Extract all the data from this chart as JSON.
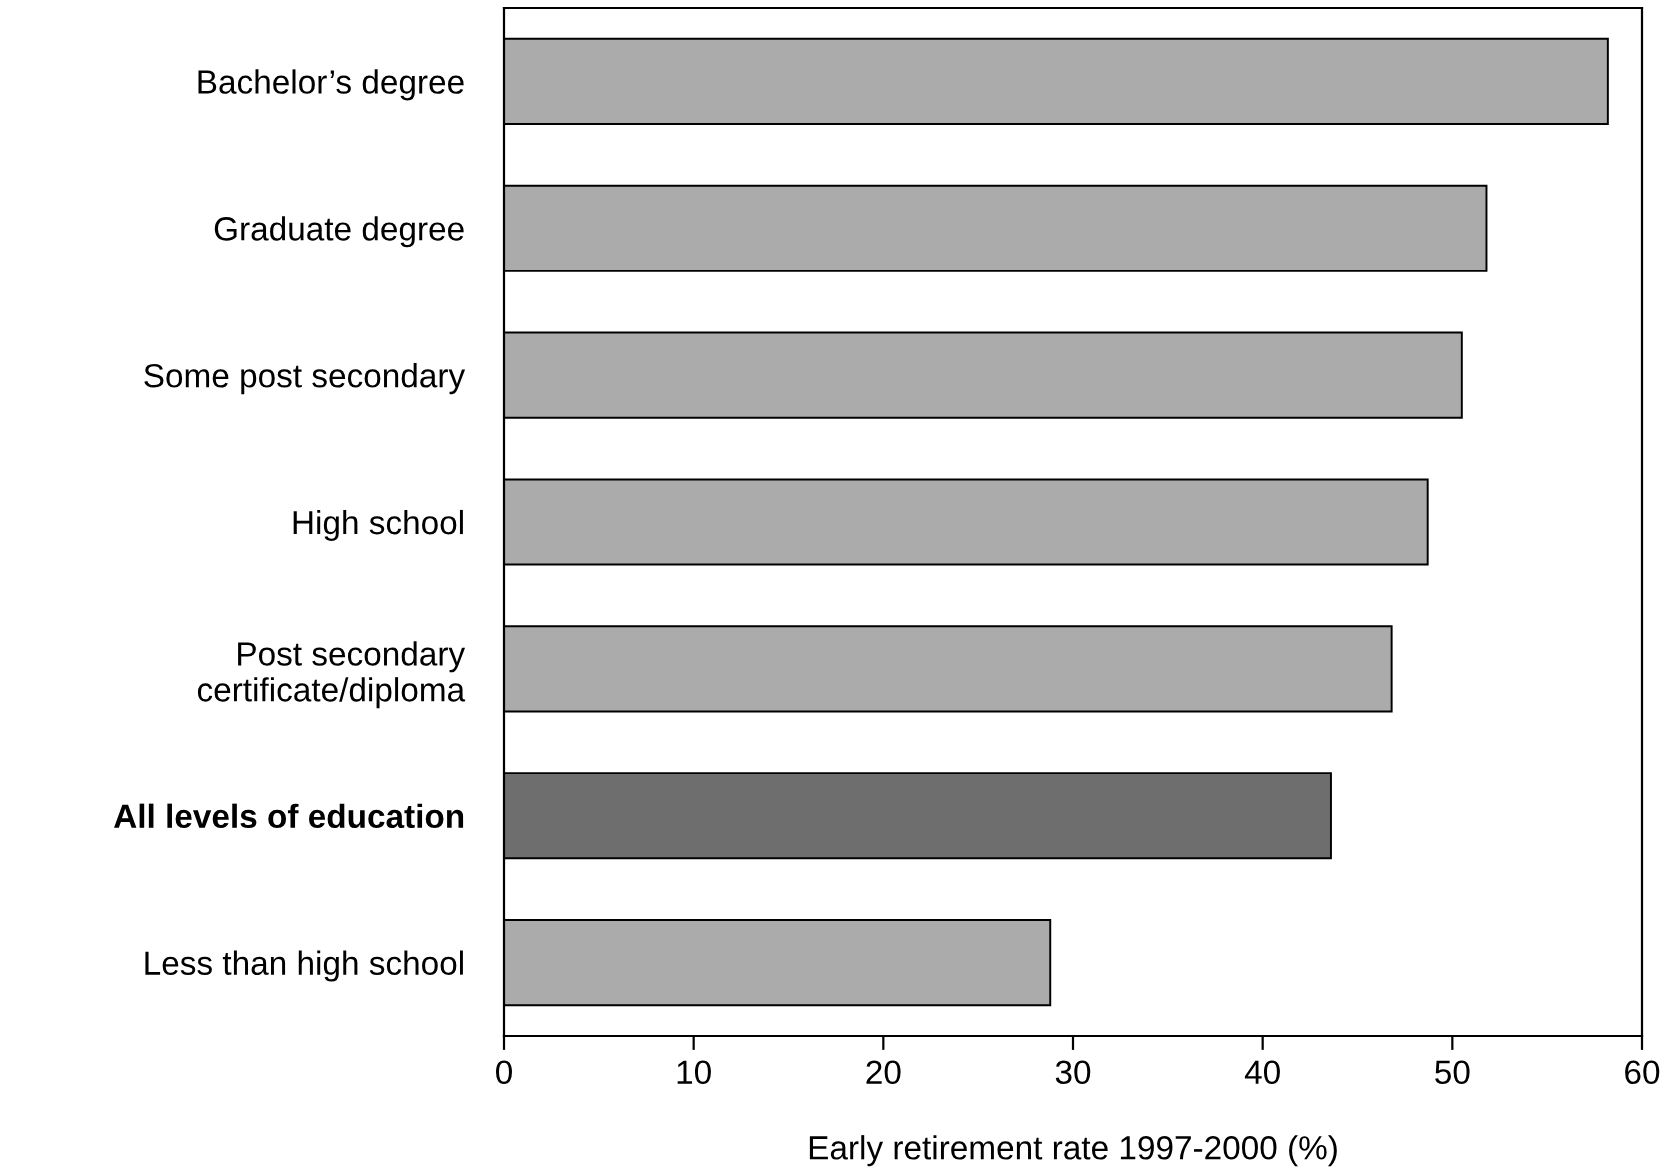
{
  "chart_data": {
    "type": "bar",
    "orientation": "horizontal",
    "categories": [
      "Bachelor’s degree",
      "Graduate degree",
      "Some post secondary",
      "High school",
      "Post secondary\ncertificate/diploma",
      "All levels of education",
      "Less than high school"
    ],
    "values": [
      58.2,
      51.8,
      50.5,
      48.7,
      46.8,
      43.6,
      28.8
    ],
    "colors": [
      "#ababab",
      "#ababab",
      "#ababab",
      "#ababab",
      "#ababab",
      "#6e6e6e",
      "#ababab"
    ],
    "xlabel": "Early retirement rate 1997-2000 (%)",
    "xlim": [
      0,
      60
    ],
    "xticks": [
      0,
      10,
      20,
      30,
      40,
      50,
      60
    ],
    "grid": false,
    "legend": false
  }
}
